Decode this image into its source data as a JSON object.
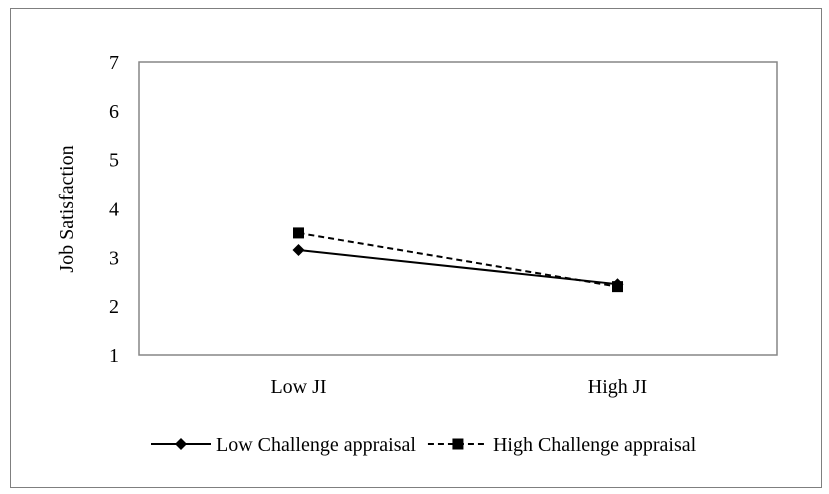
{
  "chart_data": {
    "type": "line",
    "title": "",
    "xlabel": "",
    "ylabel": "Job Satisfaction",
    "categories": [
      "Low JI",
      "High JI"
    ],
    "ylim": [
      1,
      7
    ],
    "yticks": [
      "1",
      "2",
      "3",
      "4",
      "5",
      "6",
      "7"
    ],
    "grid": false,
    "legend_position": "bottom",
    "series": [
      {
        "name": "Low Challenge appraisal",
        "values": [
          3.15,
          2.45
        ],
        "line_style": "solid",
        "marker": "diamond",
        "color": "#000000"
      },
      {
        "name": "High Challenge appraisal",
        "values": [
          3.5,
          2.4
        ],
        "line_style": "dashed",
        "marker": "square",
        "color": "#000000"
      }
    ]
  }
}
